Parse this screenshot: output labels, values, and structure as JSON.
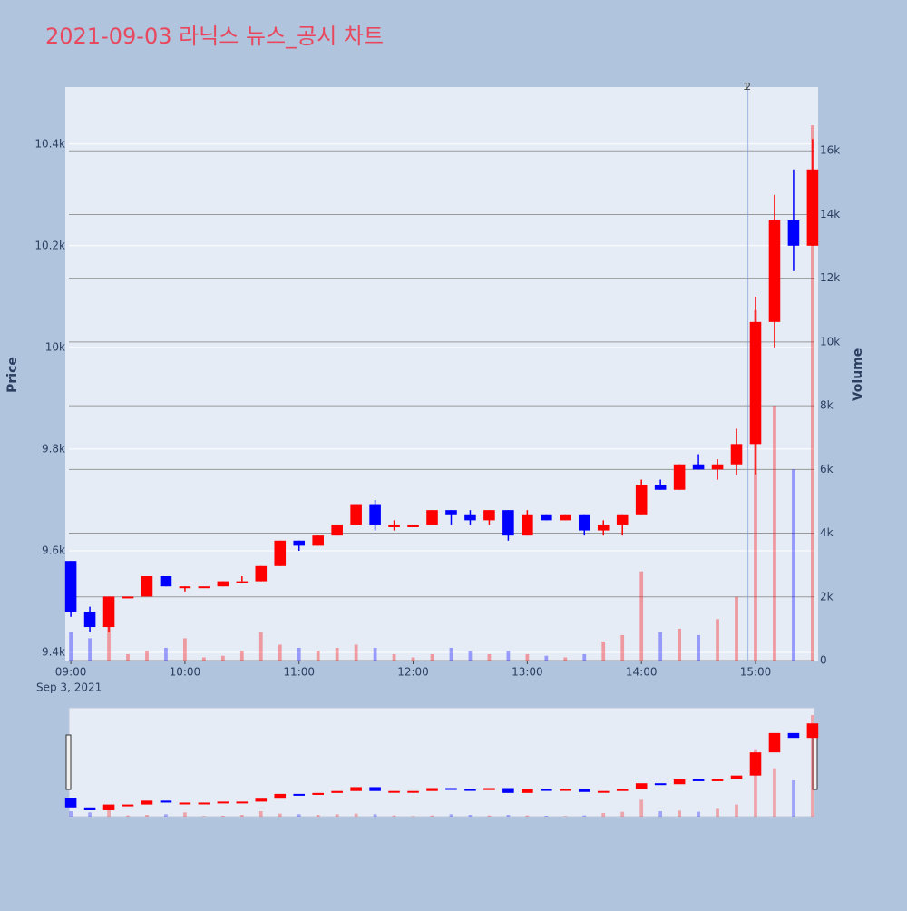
{
  "chart_data": {
    "type": "candlestick",
    "title": "2021-09-03 라닉스 뉴스_공시 차트",
    "y_label": "Price",
    "y2_label": "Volume",
    "x_date_label": "Sep 3, 2021",
    "increasing_color": "#ff0000",
    "decreasing_color": "#0000ff",
    "grid": true,
    "rangeslider": true,
    "xlim": [
      "2021-09-03 08:59",
      "2021-09-03 15:31"
    ],
    "xticks": [
      {
        "value": "2021-09-03 09:00",
        "label": "09:00"
      },
      {
        "value": "2021-09-03 10:00",
        "label": "10:00"
      },
      {
        "value": "2021-09-03 11:00",
        "label": "11:00"
      },
      {
        "value": "2021-09-03 12:00",
        "label": "12:00"
      },
      {
        "value": "2021-09-03 13:00",
        "label": "13:00"
      },
      {
        "value": "2021-09-03 14:00",
        "label": "14:00"
      },
      {
        "value": "2021-09-03 15:00",
        "label": "15:00"
      }
    ],
    "ylim": [
      9384,
      10512
    ],
    "yticks": [
      {
        "value": 9400,
        "label": "9.4k"
      },
      {
        "value": 9600,
        "label": "9.6k"
      },
      {
        "value": 9800,
        "label": "9.8k"
      },
      {
        "value": 10000,
        "label": "10k"
      },
      {
        "value": 10200,
        "label": "10.2k"
      },
      {
        "value": 10400,
        "label": "10.4k"
      }
    ],
    "y2lim": [
      0,
      18000
    ],
    "y2ticks": [
      0,
      {
        "value": 2000,
        "label": "2k"
      },
      {
        "value": 4000,
        "label": "4k"
      },
      {
        "value": 6000,
        "label": "6k"
      },
      {
        "value": 8000,
        "label": "8k"
      },
      {
        "value": 10000,
        "label": "10k"
      },
      {
        "value": 12000,
        "label": "12k"
      },
      {
        "value": 14000,
        "label": "14k"
      },
      {
        "value": 16000,
        "label": "16k"
      }
    ],
    "annotations": [
      {
        "text": "1",
        "x": "2021-09-03 14:55"
      },
      {
        "text": "2",
        "x": "2021-09-03 14:56"
      }
    ],
    "x": [
      "2021-09-03 09:00",
      "2021-09-03 09:10",
      "2021-09-03 09:20",
      "2021-09-03 09:30",
      "2021-09-03 09:40",
      "2021-09-03 09:50",
      "2021-09-03 10:00",
      "2021-09-03 10:10",
      "2021-09-03 10:20",
      "2021-09-03 10:30",
      "2021-09-03 10:40",
      "2021-09-03 10:50",
      "2021-09-03 11:00",
      "2021-09-03 11:10",
      "2021-09-03 11:20",
      "2021-09-03 11:30",
      "2021-09-03 11:40",
      "2021-09-03 11:50",
      "2021-09-03 12:00",
      "2021-09-03 12:10",
      "2021-09-03 12:20",
      "2021-09-03 12:30",
      "2021-09-03 12:40",
      "2021-09-03 12:50",
      "2021-09-03 13:00",
      "2021-09-03 13:10",
      "2021-09-03 13:20",
      "2021-09-03 13:30",
      "2021-09-03 13:40",
      "2021-09-03 13:50",
      "2021-09-03 14:00",
      "2021-09-03 14:10",
      "2021-09-03 14:20",
      "2021-09-03 14:30",
      "2021-09-03 14:40",
      "2021-09-03 14:50",
      "2021-09-03 15:00",
      "2021-09-03 15:10",
      "2021-09-03 15:20",
      "2021-09-03 15:30"
    ],
    "open": [
      9580,
      9480,
      9450,
      9510,
      9510,
      9550,
      9530,
      9530,
      9530,
      9540,
      9540,
      9570,
      9620,
      9610,
      9630,
      9650,
      9690,
      9650,
      9650,
      9650,
      9680,
      9670,
      9660,
      9680,
      9630,
      9670,
      9660,
      9670,
      9640,
      9650,
      9670,
      9730,
      9720,
      9770,
      9760,
      9770,
      9810,
      10050,
      10250,
      10200
    ],
    "high": [
      9580,
      9490,
      9510,
      9510,
      9550,
      9550,
      9530,
      9530,
      9540,
      9550,
      9570,
      9620,
      9620,
      9630,
      9650,
      9690,
      9700,
      9660,
      9650,
      9680,
      9680,
      9680,
      9680,
      9680,
      9680,
      9670,
      9670,
      9670,
      9660,
      9670,
      9740,
      9740,
      9770,
      9790,
      9780,
      9840,
      10100,
      10300,
      10350,
      10410
    ],
    "low": [
      9470,
      9440,
      9440,
      9510,
      9510,
      9530,
      9520,
      9530,
      9530,
      9540,
      9540,
      9570,
      9600,
      9610,
      9630,
      9650,
      9640,
      9640,
      9650,
      9650,
      9650,
      9650,
      9650,
      9620,
      9630,
      9660,
      9660,
      9630,
      9630,
      9630,
      9670,
      9720,
      9720,
      9760,
      9740,
      9750,
      9750,
      10000,
      10150,
      10200
    ],
    "close": [
      9480,
      9450,
      9510,
      9510,
      9550,
      9530,
      9530,
      9530,
      9540,
      9540,
      9570,
      9620,
      9610,
      9630,
      9650,
      9690,
      9650,
      9650,
      9650,
      9680,
      9670,
      9660,
      9680,
      9630,
      9670,
      9660,
      9670,
      9640,
      9650,
      9670,
      9730,
      9720,
      9770,
      9760,
      9770,
      9810,
      10050,
      10250,
      10200,
      10350
    ],
    "volume": [
      900,
      700,
      1200,
      200,
      300,
      400,
      700,
      100,
      150,
      300,
      900,
      500,
      400,
      300,
      400,
      500,
      400,
      200,
      100,
      200,
      400,
      300,
      200,
      300,
      200,
      150,
      100,
      200,
      600,
      800,
      2800,
      900,
      1000,
      800,
      1300,
      2000,
      11000,
      8000,
      6000,
      16800
    ]
  }
}
